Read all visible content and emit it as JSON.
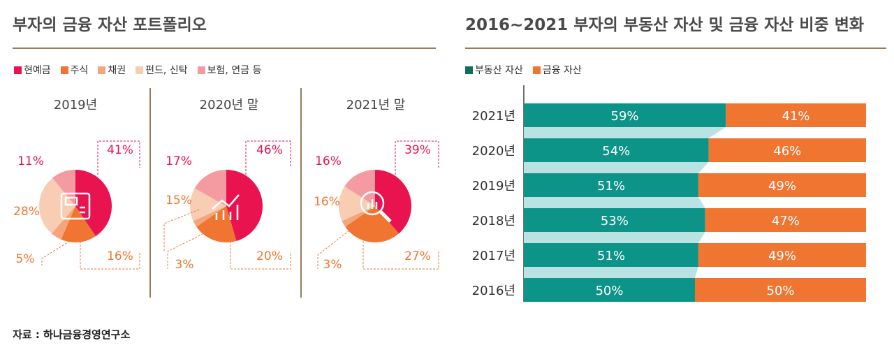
{
  "left_title": "부자의 금융 자산 포트폴리오",
  "right_title": "2016~2021 부자의 부동산 자산 및 금융 자산 비중 변화",
  "source": "자료 : 하나금융경영연구소",
  "left_legend": [
    {
      "label": "현예금",
      "color": "#e8134f"
    },
    {
      "label": "주식",
      "color": "#f07531"
    },
    {
      "label": "채권",
      "color": "#f4a57c"
    },
    {
      "label": "펀드, 신탁",
      "color": "#f8cdb4"
    },
    {
      "label": "보험, 연금 등",
      "color": "#f39ba0"
    }
  ],
  "right_legend": [
    {
      "label": "부동산 자산",
      "color": "#0e6e5c"
    },
    {
      "label": "금융 자산",
      "color": "#f07531"
    }
  ],
  "chart_data": [
    {
      "type": "pie",
      "title": "부자의 금융 자산 포트폴리오",
      "categories": [
        "현예금",
        "주식",
        "채권",
        "펀드, 신탁",
        "보험, 연금 등"
      ],
      "pies": [
        {
          "name": "2019년",
          "values": [
            41,
            16,
            5,
            28,
            11
          ],
          "labels": [
            "41%",
            "16%",
            "5%",
            "28%",
            "11%"
          ]
        },
        {
          "name": "2020년 말",
          "values": [
            46,
            20,
            3,
            15,
            17
          ],
          "labels": [
            "46%",
            "20%",
            "3%",
            "15%",
            "17%"
          ]
        },
        {
          "name": "2021년 말",
          "values": [
            39,
            27,
            3,
            16,
            16
          ],
          "labels": [
            "39%",
            "27%",
            "3%",
            "16%",
            "16%"
          ]
        }
      ]
    },
    {
      "type": "bar",
      "orientation": "horizontal",
      "stacked": true,
      "title": "2016~2021 부자의 부동산 자산 및 금융 자산 비중 변화",
      "categories": [
        "2021년",
        "2020년",
        "2019년",
        "2018년",
        "2017년",
        "2016년"
      ],
      "series": [
        {
          "name": "부동산 자산",
          "values": [
            59,
            54,
            51,
            53,
            51,
            50
          ],
          "color": "#0d9488"
        },
        {
          "name": "금융 자산",
          "values": [
            41,
            46,
            49,
            47,
            49,
            50
          ],
          "color": "#f07531"
        }
      ],
      "xlim": [
        0,
        100
      ]
    }
  ]
}
